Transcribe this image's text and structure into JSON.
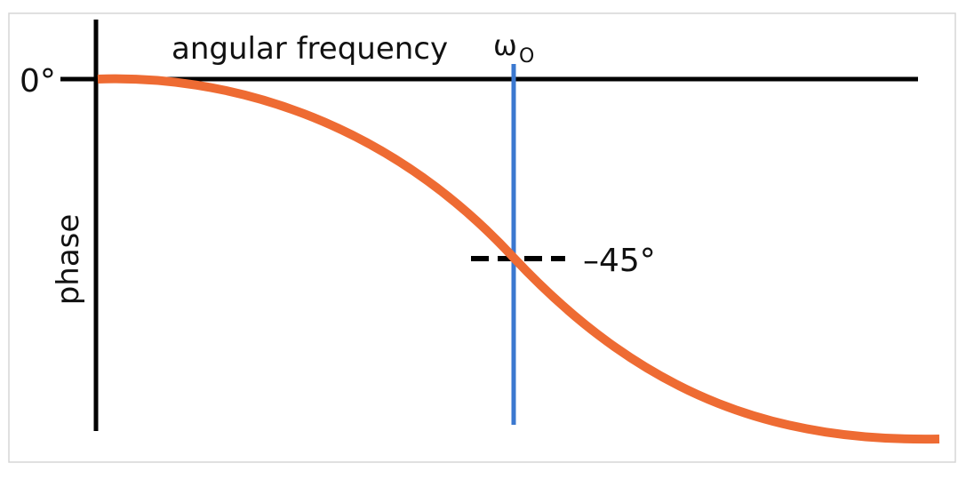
{
  "labels": {
    "x_axis": "angular frequency",
    "y_axis": "phase",
    "zero": "0°",
    "minus45": "–45°",
    "omega": "ω",
    "omega_sub": "O"
  }
}
